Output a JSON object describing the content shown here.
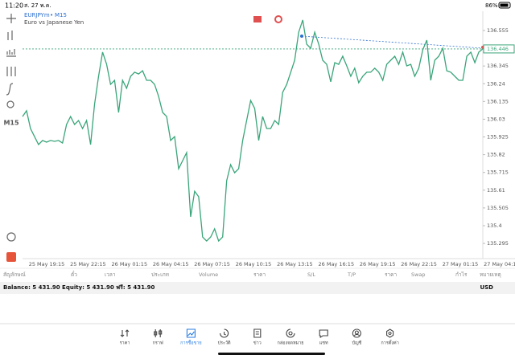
{
  "status_bar": {
    "time": "11:20",
    "date": "ส. 27 พ.ค.",
    "battery": "86%"
  },
  "chart": {
    "type": "line",
    "symbol": "EURJPYm",
    "timeframe": "M15",
    "description": "Euro vs Japanese Yen",
    "side_timeframe": "M15",
    "color": "#3aa57a",
    "current_price": 136.446,
    "ylim": [
      135.205,
      136.669
    ],
    "yticks": [
      136.555,
      136.345,
      136.24,
      136.135,
      136.03,
      135.925,
      135.82,
      135.715,
      135.61,
      135.505,
      135.4,
      135.295
    ],
    "x_labels": [
      "25 May 19:15",
      "25 May 22:15",
      "26 May 01:15",
      "26 May 04:15",
      "26 May 07:15",
      "26 May 10:15",
      "26 May 13:15",
      "26 May 16:15",
      "26 May 19:15",
      "26 May 22:15",
      "27 May 01:15",
      "27 May 04:15"
    ],
    "values": [
      136.046,
      136.08,
      135.975,
      135.927,
      135.88,
      135.904,
      135.894,
      135.904,
      135.899,
      135.904,
      135.889,
      135.999,
      136.046,
      135.999,
      136.022,
      135.975,
      136.022,
      135.88,
      136.118,
      136.284,
      136.427,
      136.355,
      136.236,
      136.26,
      136.07,
      136.26,
      136.213,
      136.284,
      136.308,
      136.298,
      136.317,
      136.26,
      136.26,
      136.236,
      136.165,
      136.07,
      136.046,
      135.904,
      135.927,
      135.737,
      135.785,
      135.832,
      135.452,
      135.604,
      135.571,
      135.333,
      135.309,
      135.333,
      135.381,
      135.309,
      135.333,
      135.666,
      135.761,
      135.713,
      135.737,
      135.904,
      136.022,
      136.141,
      136.094,
      135.904,
      136.046,
      135.975,
      135.975,
      136.022,
      135.999,
      136.189,
      136.236,
      136.308,
      136.379,
      136.545,
      136.617,
      136.474,
      136.45,
      136.545,
      136.474,
      136.379,
      136.355,
      136.251,
      136.365,
      136.355,
      136.403,
      136.346,
      136.284,
      136.332,
      136.246,
      136.284,
      136.308,
      136.308,
      136.332,
      136.308,
      136.26,
      136.355,
      136.379,
      136.403,
      136.355,
      136.427,
      136.346,
      136.355,
      136.284,
      136.332,
      136.441,
      136.498,
      136.26,
      136.379,
      136.403,
      136.45,
      136.317,
      136.308,
      136.284,
      136.26,
      136.26,
      136.403,
      136.427,
      136.365,
      136.427,
      136.446
    ]
  },
  "table": {
    "columns": [
      "สัญลักษณ์",
      "ตั๋ว",
      "เวลา",
      "ประเภท",
      "Volume",
      "ราคา",
      "S/L",
      "T/P",
      "ราคา",
      "Swap",
      "กำไร",
      "หมายเหตุ"
    ]
  },
  "account": {
    "summary": "Balance: 5 431.90 Equity: 5 431.90 ฟรี: 5 431.90",
    "currency": "USD"
  },
  "tabs": [
    {
      "label": "ราคา",
      "active": false
    },
    {
      "label": "กราฟ",
      "active": false
    },
    {
      "label": "การซื้อขาย",
      "active": true
    },
    {
      "label": "ประวัติ",
      "active": false
    },
    {
      "label": "ข่าว",
      "active": false
    },
    {
      "label": "กล่องจดหมาย",
      "active": false
    },
    {
      "label": "แชท",
      "active": false
    },
    {
      "label": "บัญชี",
      "active": false
    },
    {
      "label": "การตั้งค่า",
      "active": false
    }
  ]
}
